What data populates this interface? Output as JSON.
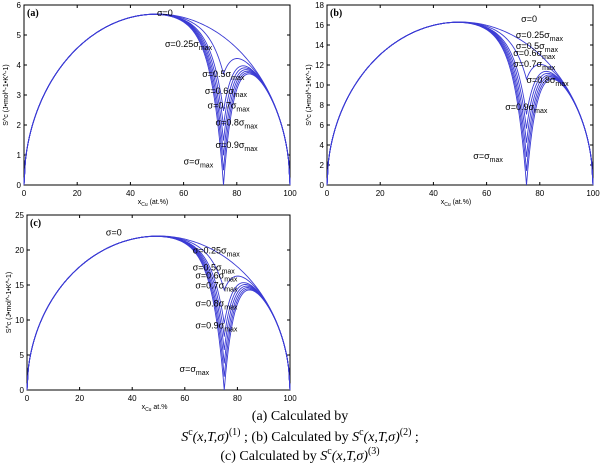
{
  "colors": {
    "curve": "#3b3bd4",
    "axis": "#000000",
    "background": "#ffffff"
  },
  "chart_data": [
    {
      "type": "line",
      "panel": "(a)",
      "xlabel_main": "x",
      "xlabel_sub": "Cu",
      "xlabel_unit": "(at.%)",
      "ylabel": "S^c (J•mol^-1•K^-1)",
      "xlim": [
        0,
        100
      ],
      "ylim": [
        0,
        6
      ],
      "xticks": [
        0,
        20,
        40,
        60,
        80,
        100
      ],
      "yticks": [
        0,
        1,
        2,
        3,
        4,
        5,
        6
      ],
      "grid": false,
      "peak_x": 50,
      "peak_y": 5.7,
      "vertex_x": 75,
      "series": [
        {
          "name": "σ=0",
          "s": 0.0
        },
        {
          "name": "σ=0.25σmax",
          "s": 0.25
        },
        {
          "name": "σ=0.5σmax",
          "s": 0.5
        },
        {
          "name": "σ=0.6σmax",
          "s": 0.6
        },
        {
          "name": "σ=0.7σmax",
          "s": 0.7
        },
        {
          "name": "σ=0.8σmax",
          "s": 0.8
        },
        {
          "name": "σ=0.9σmax",
          "s": 0.9
        },
        {
          "name": "σ=σmax",
          "s": 1.0
        }
      ],
      "annotations": [
        {
          "main": "σ=0",
          "sub": "",
          "x": 50,
          "y": 5.63
        },
        {
          "main": "σ=0.25σ",
          "sub": "max",
          "x": 53,
          "y": 4.6
        },
        {
          "main": "σ=0.5σ",
          "sub": "max",
          "x": 67,
          "y": 3.6
        },
        {
          "main": "σ=0.6σ",
          "sub": "max",
          "x": 68,
          "y": 3.03
        },
        {
          "main": "σ=0.7σ",
          "sub": "max",
          "x": 69,
          "y": 2.55
        },
        {
          "main": "σ=0.8σ",
          "sub": "max",
          "x": 72,
          "y": 1.98
        },
        {
          "main": "σ=0.9σ",
          "sub": "max",
          "x": 72,
          "y": 1.24
        },
        {
          "main": "σ=σ",
          "sub": "max",
          "x": 60,
          "y": 0.68
        }
      ]
    },
    {
      "type": "line",
      "panel": "(b)",
      "xlabel_main": "x",
      "xlabel_sub": "Cu",
      "xlabel_unit": "(at.%)",
      "ylabel": "S^c (J•mol^-1•K^-1)",
      "xlim": [
        0,
        100
      ],
      "ylim": [
        0,
        18
      ],
      "xticks": [
        0,
        20,
        40,
        60,
        80,
        100
      ],
      "yticks": [
        0,
        2,
        4,
        6,
        8,
        10,
        12,
        14,
        16,
        18
      ],
      "grid": false,
      "peak_x": 50,
      "peak_y": 16.3,
      "vertex_x": 75,
      "series": [
        {
          "name": "σ=0",
          "s": 0.0
        },
        {
          "name": "σ=0.25σmax",
          "s": 0.25
        },
        {
          "name": "σ=0.5σmax",
          "s": 0.5
        },
        {
          "name": "σ=0.6σmax",
          "s": 0.6
        },
        {
          "name": "σ=0.7σmax",
          "s": 0.7
        },
        {
          "name": "σ=0.8σmax",
          "s": 0.8
        },
        {
          "name": "σ=0.9σmax",
          "s": 0.9
        },
        {
          "name": "σ=σmax",
          "s": 1.0
        }
      ],
      "annotations": [
        {
          "main": "σ=0",
          "sub": "",
          "x": 73,
          "y": 16.3
        },
        {
          "main": "σ=0.25σ",
          "sub": "max",
          "x": 71,
          "y": 14.7
        },
        {
          "main": "σ=0.5σ",
          "sub": "max",
          "x": 71,
          "y": 13.6
        },
        {
          "main": "σ=0.6σ",
          "sub": "max",
          "x": 70,
          "y": 12.9
        },
        {
          "main": "σ=0.7σ",
          "sub": "max",
          "x": 70,
          "y": 11.8
        },
        {
          "main": "σ=0.8σ",
          "sub": "max",
          "x": 75,
          "y": 10.2
        },
        {
          "main": "σ=0.9σ",
          "sub": "max",
          "x": 67,
          "y": 7.5
        },
        {
          "main": "σ=σ",
          "sub": "max",
          "x": 55,
          "y": 2.6
        }
      ]
    },
    {
      "type": "line",
      "panel": "(c)",
      "xlabel_main": "x",
      "xlabel_sub": "Cu",
      "xlabel_unit": "at.%",
      "ylabel": "S^c (J•mol^-1•K^-1)",
      "xlim": [
        0,
        100
      ],
      "ylim": [
        0,
        25
      ],
      "xticks": [
        0,
        20,
        40,
        60,
        80,
        100
      ],
      "yticks": [
        0,
        5,
        10,
        15,
        20,
        25
      ],
      "grid": false,
      "peak_x": 50,
      "peak_y": 22.0,
      "vertex_x": 75,
      "series": [
        {
          "name": "σ=0",
          "s": 0.0
        },
        {
          "name": "σ=0.25σmax",
          "s": 0.25
        },
        {
          "name": "σ=0.5σmax",
          "s": 0.5
        },
        {
          "name": "σ=0.6σmax",
          "s": 0.6
        },
        {
          "name": "σ=0.7σmax",
          "s": 0.7
        },
        {
          "name": "σ=0.8σmax",
          "s": 0.8
        },
        {
          "name": "σ=0.9σmax",
          "s": 0.9
        },
        {
          "name": "σ=σmax",
          "s": 1.0
        }
      ],
      "annotations": [
        {
          "main": "σ=0",
          "sub": "",
          "x": 30,
          "y": 22.1
        },
        {
          "main": "σ=0.25σ",
          "sub": "max",
          "x": 63,
          "y": 19.5
        },
        {
          "main": "σ=0.5σ",
          "sub": "max",
          "x": 63,
          "y": 17.1
        },
        {
          "main": "σ=0.6σ",
          "sub": "max",
          "x": 64,
          "y": 15.9
        },
        {
          "main": "σ=0.7σ",
          "sub": "max",
          "x": 64,
          "y": 14.5
        },
        {
          "main": "σ=0.8σ",
          "sub": "max",
          "x": 64,
          "y": 11.9
        },
        {
          "main": "σ=0.9σ",
          "sub": "max",
          "x": 64,
          "y": 8.8
        },
        {
          "main": "σ=σ",
          "sub": "max",
          "x": 58,
          "y": 2.6
        }
      ]
    }
  ],
  "caption": {
    "line1": "(a)   Calculated   by",
    "math": "S",
    "math_sup": "c",
    "math_args": "(x,T,σ)",
    "ref1": "(1)",
    "sep": ";",
    "b_label": "(b) Calculated by",
    "ref2": "(2)",
    "c_label": "(c) Calculated by",
    "ref3": "(3)"
  }
}
